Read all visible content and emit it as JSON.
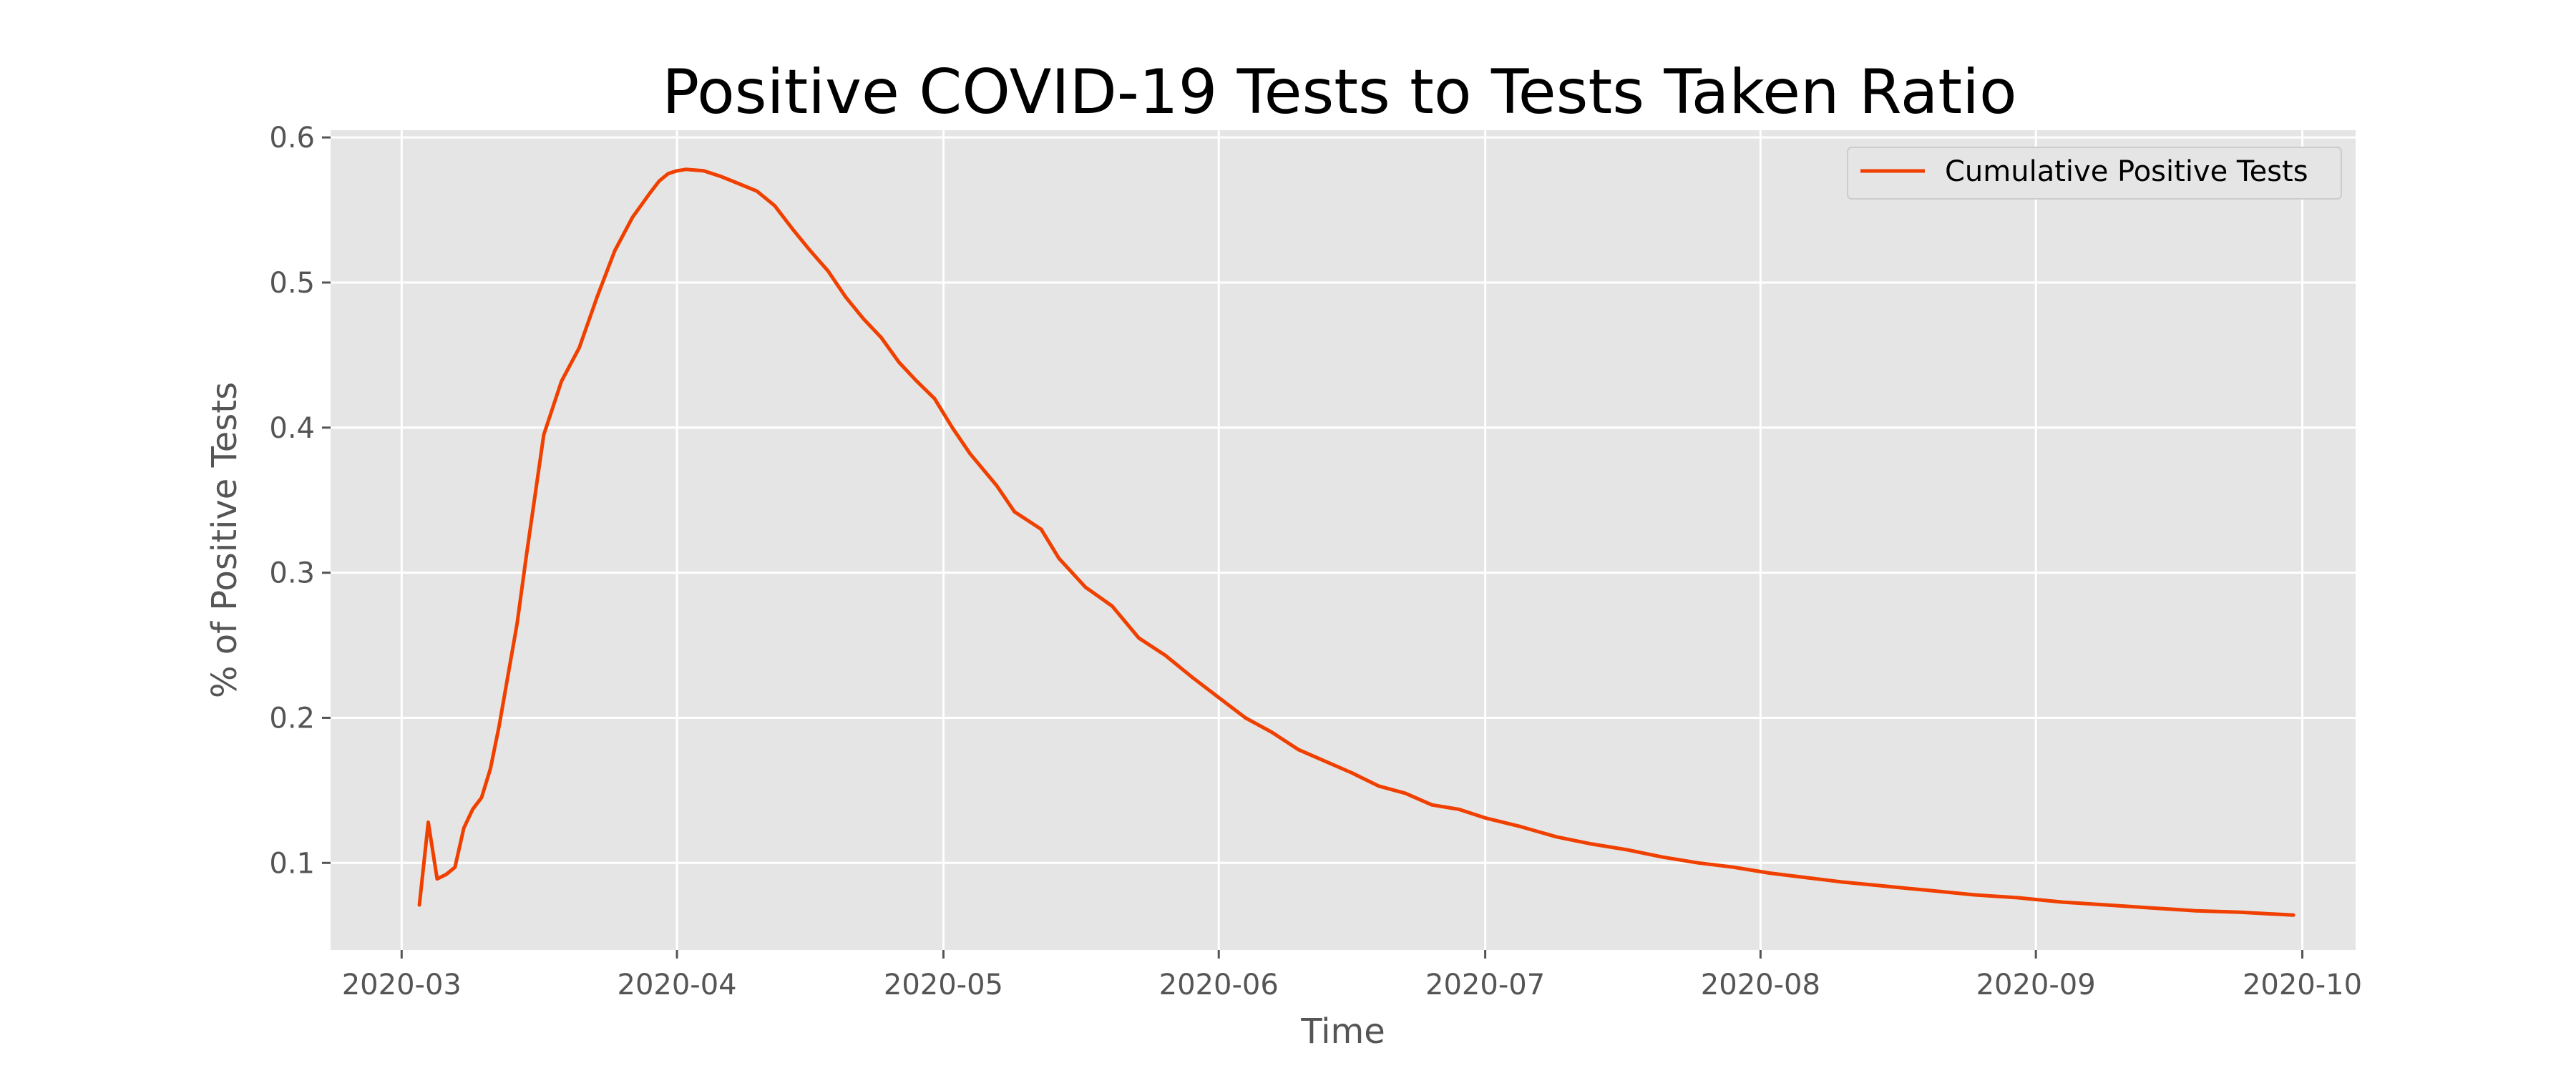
{
  "chart_data": {
    "type": "line",
    "title": "Positive COVID-19 Tests to Tests Taken Ratio",
    "xlabel": "Time",
    "ylabel": "% of Positive Tests",
    "xlim": [
      "2020-02-22",
      "2020-10-07"
    ],
    "ylim": [
      0.04,
      0.605
    ],
    "x_ticks": [
      "2020-03",
      "2020-04",
      "2020-05",
      "2020-06",
      "2020-07",
      "2020-08",
      "2020-09",
      "2020-10"
    ],
    "y_ticks": [
      "0.1",
      "0.2",
      "0.3",
      "0.4",
      "0.5",
      "0.6"
    ],
    "grid": true,
    "legend_position": "top-right",
    "colors": {
      "background": "#e5e5e5",
      "grid": "#ffffff",
      "series": "#f04000"
    },
    "series": [
      {
        "name": "Cumulative Positive Tests",
        "x": [
          "2020-03-03",
          "2020-03-04",
          "2020-03-05",
          "2020-03-06",
          "2020-03-07",
          "2020-03-08",
          "2020-03-09",
          "2020-03-10",
          "2020-03-11",
          "2020-03-12",
          "2020-03-13",
          "2020-03-14",
          "2020-03-15",
          "2020-03-17",
          "2020-03-19",
          "2020-03-21",
          "2020-03-23",
          "2020-03-25",
          "2020-03-27",
          "2020-03-29",
          "2020-03-30",
          "2020-03-31",
          "2020-04-01",
          "2020-04-02",
          "2020-04-04",
          "2020-04-06",
          "2020-04-08",
          "2020-04-10",
          "2020-04-12",
          "2020-04-14",
          "2020-04-16",
          "2020-04-18",
          "2020-04-20",
          "2020-04-22",
          "2020-04-24",
          "2020-04-26",
          "2020-04-28",
          "2020-04-30",
          "2020-05-02",
          "2020-05-04",
          "2020-05-07",
          "2020-05-09",
          "2020-05-12",
          "2020-05-14",
          "2020-05-17",
          "2020-05-20",
          "2020-05-23",
          "2020-05-26",
          "2020-05-29",
          "2020-06-01",
          "2020-06-04",
          "2020-06-07",
          "2020-06-10",
          "2020-06-13",
          "2020-06-16",
          "2020-06-19",
          "2020-06-22",
          "2020-06-25",
          "2020-06-28",
          "2020-07-01",
          "2020-07-05",
          "2020-07-09",
          "2020-07-13",
          "2020-07-17",
          "2020-07-21",
          "2020-07-25",
          "2020-07-29",
          "2020-08-02",
          "2020-08-06",
          "2020-08-10",
          "2020-08-15",
          "2020-08-20",
          "2020-08-25",
          "2020-08-30",
          "2020-09-04",
          "2020-09-09",
          "2020-09-14",
          "2020-09-19",
          "2020-09-24",
          "2020-09-30"
        ],
        "y": [
          0.071,
          0.128,
          0.089,
          0.092,
          0.097,
          0.124,
          0.137,
          0.145,
          0.165,
          0.195,
          0.23,
          0.265,
          0.31,
          0.395,
          0.432,
          0.455,
          0.49,
          0.522,
          0.545,
          0.562,
          0.57,
          0.575,
          0.577,
          0.578,
          0.577,
          0.573,
          0.568,
          0.563,
          0.553,
          0.537,
          0.522,
          0.508,
          0.49,
          0.475,
          0.462,
          0.445,
          0.432,
          0.42,
          0.4,
          0.382,
          0.36,
          0.342,
          0.33,
          0.31,
          0.29,
          0.277,
          0.255,
          0.243,
          0.228,
          0.214,
          0.2,
          0.19,
          0.178,
          0.17,
          0.162,
          0.153,
          0.148,
          0.14,
          0.137,
          0.131,
          0.125,
          0.118,
          0.113,
          0.109,
          0.104,
          0.1,
          0.097,
          0.093,
          0.09,
          0.087,
          0.084,
          0.081,
          0.078,
          0.076,
          0.073,
          0.071,
          0.069,
          0.067,
          0.066,
          0.064
        ]
      }
    ]
  }
}
